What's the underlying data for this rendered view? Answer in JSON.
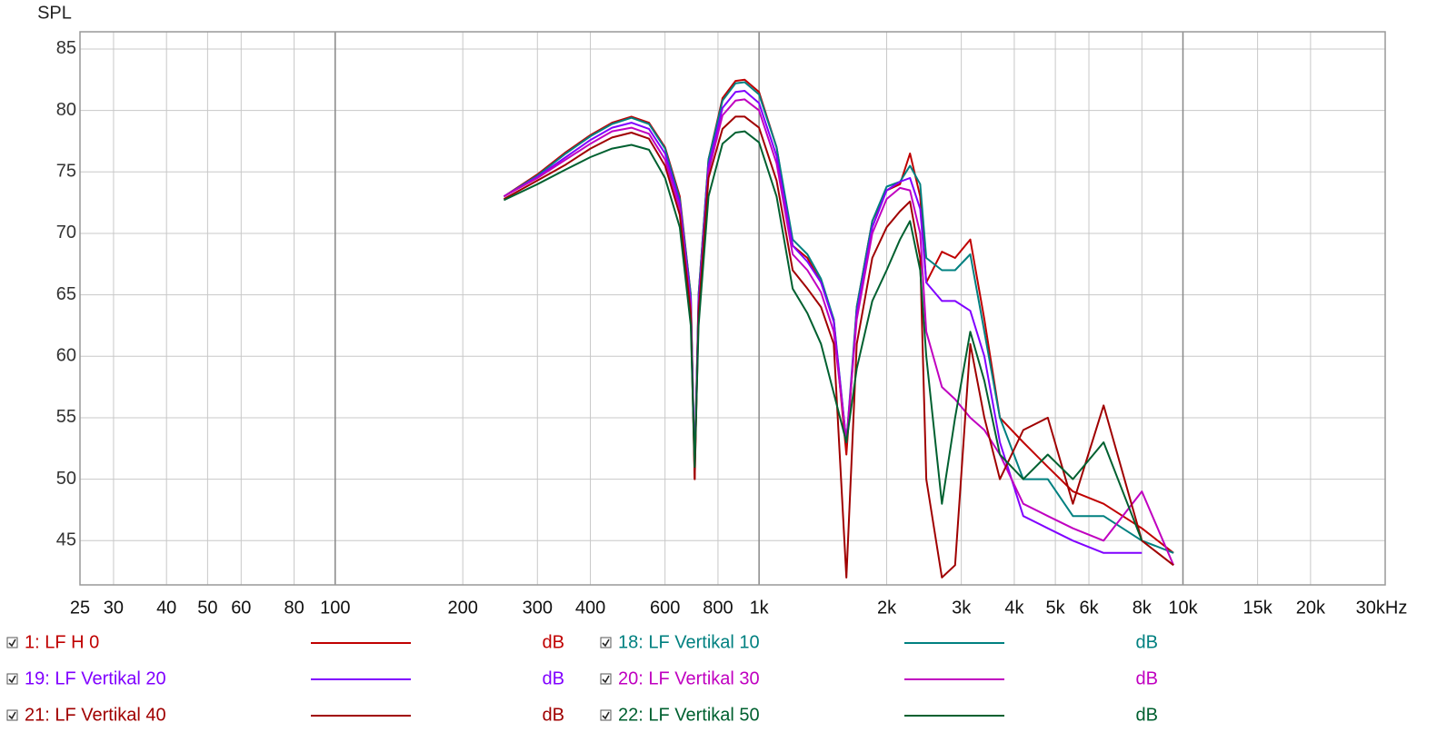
{
  "chart_data": {
    "type": "line",
    "ylabel": "SPL",
    "x": [
      250,
      300,
      350,
      400,
      450,
      500,
      550,
      600,
      650,
      690,
      705,
      720,
      760,
      820,
      880,
      925,
      1000,
      1100,
      1200,
      1300,
      1400,
      1500,
      1607,
      1700,
      1850,
      2000,
      2150,
      2270,
      2400,
      2480,
      2700,
      2900,
      3150,
      3400,
      3700,
      4200,
      4800,
      5500,
      6500,
      8000,
      9500
    ],
    "xlim": [
      25,
      30000
    ],
    "log_x": true,
    "xticks": [
      25,
      30,
      40,
      50,
      60,
      80,
      100,
      200,
      300,
      400,
      600,
      800,
      {
        "value": 1000,
        "label": "1k"
      },
      {
        "value": 2000,
        "label": "2k"
      },
      {
        "value": 3000,
        "label": "3k"
      },
      {
        "value": 4000,
        "label": "4k"
      },
      {
        "value": 5000,
        "label": "5k"
      },
      {
        "value": 6000,
        "label": "6k"
      },
      {
        "value": 8000,
        "label": "8k"
      },
      {
        "value": 10000,
        "label": "10k"
      },
      {
        "value": 15000,
        "label": "15k"
      },
      {
        "value": 20000,
        "label": "20k"
      },
      {
        "value": 30000,
        "label": "30kHz"
      }
    ],
    "ylim": [
      41.4,
      86.4
    ],
    "yticks": [
      45,
      50,
      55,
      60,
      65,
      70,
      75,
      80,
      85
    ],
    "grid": true,
    "series": [
      {
        "name": "1: LF H 0",
        "color": "#c00000",
        "unit": "dB",
        "values": [
          73,
          74.8,
          76.6,
          78,
          79,
          79.5,
          79,
          77,
          73,
          65,
          50,
          65,
          76,
          81,
          82.4,
          82.5,
          81.5,
          77,
          69,
          68,
          66,
          63,
          52,
          64,
          71,
          73.5,
          74,
          76.5,
          73,
          66,
          68.5,
          68,
          69.5,
          63,
          55,
          53,
          51,
          49,
          48,
          46,
          44
        ]
      },
      {
        "name": "18: LF Vertikal 10",
        "color": "#008080",
        "unit": "dB",
        "values": [
          73,
          74.7,
          76.5,
          77.9,
          78.9,
          79.4,
          78.9,
          76.9,
          72.8,
          65,
          51,
          65,
          76,
          80.8,
          82.2,
          82.3,
          81.3,
          77,
          69.5,
          68.3,
          66.3,
          63,
          53,
          64,
          71,
          73.8,
          74.2,
          75.5,
          74,
          68,
          67,
          67,
          68.3,
          62,
          55,
          50,
          50,
          47,
          47,
          45,
          44
        ]
      },
      {
        "name": "19: LF Vertikal 20",
        "color": "#8000ff",
        "unit": "dB",
        "values": [
          73,
          74.6,
          76.2,
          77.6,
          78.6,
          79,
          78.5,
          76.5,
          72.5,
          64.5,
          51,
          64.5,
          75.5,
          80.2,
          81.5,
          81.6,
          80.6,
          76.3,
          69,
          67.7,
          66,
          62.8,
          53,
          63.5,
          70.5,
          73.5,
          74.2,
          74.5,
          72,
          66,
          64.5,
          64.5,
          63.7,
          60,
          53,
          47,
          46,
          45,
          44,
          44,
          null
        ]
      },
      {
        "name": "20: LF Vertikal 30",
        "color": "#c000c0",
        "unit": "dB",
        "values": [
          73,
          74.5,
          76,
          77.3,
          78.3,
          78.6,
          78.1,
          76,
          72,
          64,
          51,
          64,
          75,
          79.6,
          80.8,
          80.9,
          80,
          75.7,
          68.3,
          67,
          65.2,
          62,
          53,
          63,
          70,
          72.8,
          73.7,
          73.5,
          70,
          62,
          57.5,
          56.5,
          55,
          54,
          52,
          48,
          47,
          46,
          45,
          49,
          43
        ]
      },
      {
        "name": "21: LF Vertikal 40",
        "color": "#a00000",
        "unit": "dB",
        "values": [
          72.8,
          74.3,
          75.6,
          76.9,
          77.8,
          78.2,
          77.7,
          75.5,
          71.5,
          63.5,
          50,
          63.5,
          74.5,
          78.5,
          79.5,
          79.5,
          78.6,
          74.3,
          67,
          65.5,
          64,
          61,
          42,
          61,
          68,
          70.5,
          71.8,
          72.6,
          68,
          50,
          42,
          43,
          61,
          55,
          50,
          54,
          55,
          48,
          56,
          45,
          43
        ]
      },
      {
        "name": "22: LF Vertikal 50",
        "color": "#006030",
        "unit": "dB",
        "values": [
          72.7,
          74,
          75.2,
          76.2,
          76.9,
          77.2,
          76.8,
          74.5,
          70.5,
          62.5,
          51,
          62.5,
          73,
          77.3,
          78.2,
          78.3,
          77.4,
          73,
          65.5,
          63.5,
          61,
          57,
          53,
          59,
          64.5,
          67,
          69.5,
          71,
          67,
          60,
          48,
          55,
          62,
          58,
          52,
          50,
          52,
          50,
          53,
          45,
          null
        ]
      }
    ]
  }
}
